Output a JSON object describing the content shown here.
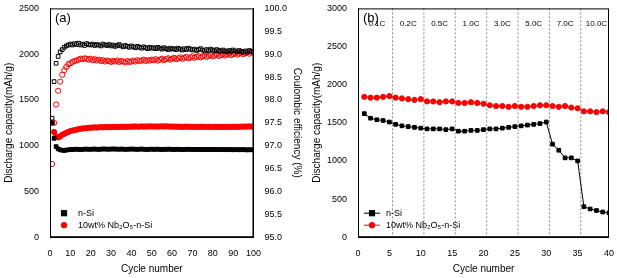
{
  "chart_data": [
    {
      "type": "scatter",
      "title": "(a)",
      "x_label": "Cycle number",
      "y_label": "Discharge capacity(mAh/g)",
      "y2_label": "Coulombic efficiency (%)",
      "xlim": [
        0,
        100
      ],
      "xticks": [
        0,
        10,
        20,
        30,
        40,
        50,
        60,
        70,
        80,
        90,
        100
      ],
      "ylim": [
        0,
        2500
      ],
      "yticks": [
        0,
        500,
        1000,
        1500,
        2000,
        2500
      ],
      "y2lim": [
        95,
        100
      ],
      "y2ticks": [
        {
          "value": 95,
          "label": "95.0"
        },
        95.5,
        {
          "value": 96,
          "label": "96.0"
        },
        96.5,
        {
          "value": 97,
          "label": "97.0"
        },
        97.5,
        {
          "value": 98,
          "label": "98.0"
        },
        98.5,
        {
          "value": 99,
          "label": "99.0"
        },
        99.5,
        {
          "value": 100,
          "label": "100.0"
        }
      ],
      "grid": false,
      "legend": "bottom-left",
      "x": [
        1,
        2,
        3,
        4,
        5,
        6,
        7,
        8,
        9,
        10,
        11,
        12,
        13,
        14,
        15,
        16,
        17,
        18,
        19,
        20,
        21,
        22,
        23,
        24,
        25,
        26,
        27,
        28,
        29,
        30,
        31,
        32,
        33,
        34,
        35,
        36,
        37,
        38,
        39,
        40,
        41,
        42,
        43,
        44,
        45,
        46,
        47,
        48,
        49,
        50,
        51,
        52,
        53,
        54,
        55,
        56,
        57,
        58,
        59,
        60,
        61,
        62,
        63,
        64,
        65,
        66,
        67,
        68,
        69,
        70,
        71,
        72,
        73,
        74,
        75,
        76,
        77,
        78,
        79,
        80,
        81,
        82,
        83,
        84,
        85,
        86,
        87,
        88,
        89,
        90,
        91,
        92,
        93,
        94,
        95,
        96,
        97,
        98,
        99,
        100
      ],
      "series": [
        {
          "name": "n-Si",
          "color": "#000000",
          "marker": "square",
          "values": [
            1250,
            1080,
            990,
            965,
            955,
            950,
            948,
            952,
            955,
            957,
            958,
            960,
            962,
            960,
            958,
            960,
            962,
            963,
            960,
            961,
            962,
            963,
            961,
            960,
            962,
            964,
            963,
            962,
            961,
            963,
            964,
            963,
            962,
            961,
            963,
            962,
            960,
            961,
            962,
            963,
            962,
            961,
            960,
            962,
            963,
            961,
            960,
            959,
            961,
            962,
            960,
            961,
            962,
            960,
            959,
            961,
            960,
            962,
            961,
            960,
            959,
            960,
            961,
            960,
            958,
            959,
            960,
            961,
            959,
            958,
            959,
            960,
            958,
            957,
            959,
            960,
            958,
            957,
            958,
            959,
            958,
            957,
            956,
            958,
            957,
            956,
            957,
            958,
            956,
            955,
            956,
            957,
            955,
            956,
            957,
            955,
            954,
            956,
            955,
            954
          ]
        },
        {
          "name": "10wt% Nb₂O₅-n-Si",
          "color": "#ff0000",
          "marker": "circle",
          "values": [
            1250,
            1150,
            1100,
            1090,
            1100,
            1120,
            1130,
            1140,
            1150,
            1160,
            1165,
            1170,
            1175,
            1180,
            1185,
            1188,
            1190,
            1192,
            1195,
            1197,
            1198,
            1200,
            1198,
            1200,
            1202,
            1200,
            1203,
            1201,
            1204,
            1202,
            1205,
            1203,
            1206,
            1204,
            1207,
            1205,
            1208,
            1206,
            1207,
            1209,
            1208,
            1210,
            1207,
            1209,
            1211,
            1208,
            1210,
            1209,
            1211,
            1210,
            1209,
            1211,
            1208,
            1210,
            1212,
            1209,
            1211,
            1210,
            1208,
            1210,
            1207,
            1209,
            1206,
            1208,
            1205,
            1207,
            1209,
            1206,
            1208,
            1205,
            1207,
            1204,
            1206,
            1208,
            1205,
            1207,
            1204,
            1206,
            1203,
            1205,
            1207,
            1204,
            1206,
            1203,
            1205,
            1207,
            1204,
            1206,
            1205,
            1207,
            1205,
            1208,
            1206,
            1209,
            1207,
            1210,
            1208,
            1211,
            1209,
            1210
          ]
        },
        {
          "name": "n-Si",
          "color": "#000000",
          "marker": "open_square",
          "axis": "y2",
          "values": [
            97.6,
            98.4,
            98.8,
            98.95,
            99.05,
            99.1,
            99.15,
            99.18,
            99.2,
            99.22,
            99.2,
            99.23,
            99.21,
            99.24,
            99.2,
            99.22,
            99.19,
            99.23,
            99.21,
            99.2,
            99.22,
            99.19,
            99.21,
            99.2,
            99.18,
            99.22,
            99.2,
            99.19,
            99.21,
            99.18,
            99.2,
            99.17,
            99.19,
            99.21,
            99.18,
            99.16,
            99.19,
            99.17,
            99.15,
            99.18,
            99.16,
            99.14,
            99.17,
            99.15,
            99.13,
            99.16,
            99.14,
            99.12,
            99.15,
            99.13,
            99.14,
            99.12,
            99.15,
            99.13,
            99.11,
            99.14,
            99.12,
            99.1,
            99.13,
            99.11,
            99.12,
            99.1,
            99.13,
            99.11,
            99.09,
            99.12,
            99.1,
            99.13,
            99.11,
            99.09,
            99.11,
            99.08,
            99.1,
            99.12,
            99.09,
            99.07,
            99.1,
            99.08,
            99.11,
            99.09,
            99.07,
            99.1,
            99.08,
            99.06,
            99.09,
            99.07,
            99.05,
            99.08,
            99.06,
            99.09,
            99.07,
            99.05,
            99.08,
            99.06,
            99.04,
            99.07,
            99.05,
            99.08,
            99.06,
            99.05
          ]
        },
        {
          "name": "10wt% Nb₂O₅-n-Si",
          "color": "#ff0000",
          "marker": "open_circle",
          "axis": "y2",
          "values": [
            96.6,
            97.5,
            97.9,
            98.2,
            98.4,
            98.55,
            98.65,
            98.72,
            98.78,
            98.8,
            98.83,
            98.85,
            98.86,
            98.88,
            98.9,
            98.89,
            98.91,
            98.9,
            98.88,
            98.9,
            98.87,
            98.89,
            98.86,
            98.88,
            98.85,
            98.87,
            98.84,
            98.86,
            98.85,
            98.83,
            98.85,
            98.84,
            98.86,
            98.83,
            98.85,
            98.84,
            98.82,
            98.85,
            98.83,
            98.84,
            98.86,
            98.84,
            98.87,
            98.85,
            98.86,
            98.88,
            98.85,
            98.87,
            98.86,
            98.88,
            98.87,
            98.89,
            98.86,
            98.88,
            98.9,
            98.87,
            98.89,
            98.91,
            98.88,
            98.9,
            98.92,
            98.89,
            98.91,
            98.93,
            98.9,
            98.92,
            98.94,
            98.91,
            98.93,
            98.95,
            98.92,
            98.94,
            98.96,
            98.93,
            98.95,
            98.97,
            98.94,
            98.96,
            98.98,
            98.95,
            98.97,
            98.99,
            98.96,
            98.98,
            99.0,
            98.97,
            98.99,
            99.01,
            98.98,
            99.0,
            99.02,
            98.99,
            99.01,
            99.03,
            99.0,
            99.02,
            99.04,
            99.01,
            99.03,
            99.05
          ]
        }
      ]
    },
    {
      "type": "line",
      "title": "(b)",
      "x_label": "Cycle number",
      "y_label": "Discharge capacity(mAh/g)",
      "xlim": [
        0,
        40
      ],
      "xticks": [
        0,
        5,
        10,
        15,
        20,
        25,
        30,
        35,
        40
      ],
      "ylim": [
        0,
        3000
      ],
      "yticks": [
        0,
        500,
        1000,
        1500,
        2000,
        2500,
        3000
      ],
      "grid": false,
      "legend": "bottom-left",
      "dividers": [
        5.5,
        10.5,
        15.5,
        20.5,
        25.5,
        30.5,
        35.5
      ],
      "annotations": [
        {
          "text": "0.1C",
          "x": 3,
          "y": 2800
        },
        {
          "text": "0.2C",
          "x": 8,
          "y": 2800
        },
        {
          "text": "0.5C",
          "x": 13,
          "y": 2800
        },
        {
          "text": "1.0C",
          "x": 18,
          "y": 2800
        },
        {
          "text": "3.0C",
          "x": 23,
          "y": 2800
        },
        {
          "text": "5.0C",
          "x": 28,
          "y": 2800
        },
        {
          "text": "7.0C",
          "x": 33,
          "y": 2800
        },
        {
          "text": "10.0C",
          "x": 38,
          "y": 2800
        }
      ],
      "x": [
        1,
        2,
        3,
        4,
        5,
        6,
        7,
        8,
        9,
        10,
        11,
        12,
        13,
        14,
        15,
        16,
        17,
        18,
        19,
        20,
        21,
        22,
        23,
        24,
        25,
        26,
        27,
        28,
        29,
        30,
        31,
        32,
        33,
        34,
        35,
        36,
        37,
        38,
        39,
        40
      ],
      "series": [
        {
          "name": "n-Si",
          "color": "#000000",
          "marker": "square",
          "values": [
            1620,
            1560,
            1540,
            1530,
            1510,
            1480,
            1460,
            1450,
            1440,
            1430,
            1420,
            1420,
            1420,
            1410,
            1420,
            1390,
            1390,
            1400,
            1400,
            1410,
            1420,
            1420,
            1430,
            1440,
            1450,
            1460,
            1470,
            1480,
            1490,
            1510,
            1220,
            1140,
            1040,
            1040,
            1000,
            400,
            370,
            350,
            330,
            320
          ]
        },
        {
          "name": "10wt% Nb₂O₅-n-Si",
          "color": "#ff0000",
          "marker": "circle",
          "values": [
            1840,
            1830,
            1830,
            1840,
            1850,
            1830,
            1820,
            1810,
            1800,
            1810,
            1780,
            1780,
            1770,
            1780,
            1780,
            1760,
            1760,
            1770,
            1760,
            1750,
            1730,
            1720,
            1720,
            1710,
            1720,
            1710,
            1710,
            1720,
            1730,
            1730,
            1720,
            1710,
            1720,
            1700,
            1690,
            1650,
            1650,
            1640,
            1650,
            1640
          ]
        }
      ]
    }
  ]
}
